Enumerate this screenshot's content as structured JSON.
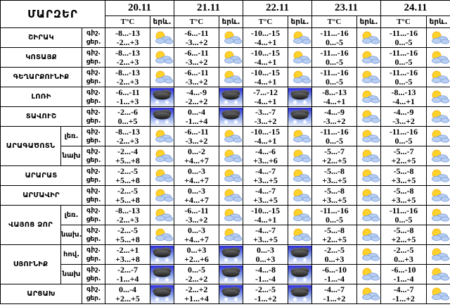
{
  "chart_data": {
    "type": "table",
    "title": "ՄԱՐԶԵՐ",
    "dates": [
      "20.11",
      "21.11",
      "22.11",
      "23.11",
      "24.11"
    ],
    "subcolumns": {
      "temp": "T°C",
      "weather": "երև."
    },
    "row_labels": {
      "night": "գիշ.",
      "day": "ցեր."
    },
    "icon_types": [
      "sun-cloud",
      "snow-cloud"
    ],
    "colors": {
      "border": "#000000",
      "sun": "#ffd229",
      "sun_edge": "#eda90a",
      "cloud_fill": "#b9cff2",
      "cloud_stroke": "#7a9cd8",
      "snow_sky_top": "#2b2bd8",
      "snow_sky_mid": "#8fa8ec",
      "snow_sky_bottom": "#f0f4ff",
      "snow_cloud_top": "#6a6a6a",
      "snow_cloud_bottom": "#141414",
      "flake": "#ffffff"
    },
    "regions": [
      {
        "name": "ՇԻՐԱԿ",
        "rows": [
          {
            "sub": null,
            "days": [
              {
                "night": "-8...-13",
                "day": "-2...+3",
                "icon": "sun-cloud"
              },
              {
                "night": "-6...-11",
                "day": "-3...+2",
                "icon": "sun-cloud"
              },
              {
                "night": "-10...-15",
                "day": "-4...+1",
                "icon": "sun-cloud"
              },
              {
                "night": "-11...-16",
                "day": "0...-5",
                "icon": "sun-cloud"
              },
              {
                "night": "-11...-16",
                "day": "0...-5",
                "icon": "sun-cloud"
              }
            ]
          }
        ]
      },
      {
        "name": "ԿՈՏԱՅՔ",
        "rows": [
          {
            "sub": null,
            "days": [
              {
                "night": "-8...-13",
                "day": "-2...+3",
                "icon": "sun-cloud"
              },
              {
                "night": "-6...-11",
                "day": "-3...+2",
                "icon": "sun-cloud"
              },
              {
                "night": "-10...-15",
                "day": "-4...+1",
                "icon": "sun-cloud"
              },
              {
                "night": "-11...-16",
                "day": "0...-5",
                "icon": "sun-cloud"
              },
              {
                "night": "-11...-16",
                "day": "0...-5",
                "icon": "sun-cloud"
              }
            ]
          }
        ]
      },
      {
        "name": "ԳԵՂԱՐՔՈՒՆԻՔ",
        "rows": [
          {
            "sub": null,
            "days": [
              {
                "night": "-8...-13",
                "day": "-2...+3",
                "icon": "sun-cloud"
              },
              {
                "night": "-6...-11",
                "day": "-3...+2",
                "icon": "sun-cloud"
              },
              {
                "night": "-10...-15",
                "day": "-4...+1",
                "icon": "sun-cloud"
              },
              {
                "night": "-11...-16",
                "day": "0...-5",
                "icon": "sun-cloud"
              },
              {
                "night": "-11...-16",
                "day": "0...-5",
                "icon": "sun-cloud"
              }
            ]
          }
        ]
      },
      {
        "name": "ԼՈՌԻ",
        "rows": [
          {
            "sub": null,
            "days": [
              {
                "night": "-6...-11",
                "day": "-1...+3",
                "icon": "snow-cloud"
              },
              {
                "night": "-4...-9",
                "day": "-2...+2",
                "icon": "snow-cloud"
              },
              {
                "night": "-7...-12",
                "day": "-4...+1",
                "icon": "snow-cloud"
              },
              {
                "night": "-8...-13",
                "day": "-4...+1",
                "icon": "sun-cloud"
              },
              {
                "night": "-8...-13",
                "day": "-4...+1",
                "icon": "sun-cloud"
              }
            ]
          }
        ]
      },
      {
        "name": "ՏԱՎՈՒՇ",
        "rows": [
          {
            "sub": null,
            "days": [
              {
                "night": "-2...-6",
                "day": "0...+5",
                "icon": "snow-cloud"
              },
              {
                "night": "0...-4",
                "day": "-1...+4",
                "icon": "snow-cloud"
              },
              {
                "night": "-3...-7",
                "day": "-3...+2",
                "icon": "snow-cloud"
              },
              {
                "night": "-4...-9",
                "day": "-3...+2",
                "icon": "sun-cloud"
              },
              {
                "night": "-4...-9",
                "day": "-3...+2",
                "icon": "sun-cloud"
              }
            ]
          }
        ]
      },
      {
        "name": "ԱՐԱԳԱԾՈՏՆ",
        "rows": [
          {
            "sub": "լեռ.",
            "days": [
              {
                "night": "-8...-13",
                "day": "-2...+3",
                "icon": "sun-cloud"
              },
              {
                "night": "-6...-11",
                "day": "-3...+2",
                "icon": "sun-cloud"
              },
              {
                "night": "-10...-15",
                "day": "-4...+1",
                "icon": "sun-cloud"
              },
              {
                "night": "-11...-16",
                "day": "0...-5",
                "icon": "sun-cloud"
              },
              {
                "night": "-11...-16",
                "day": "0...-5",
                "icon": "sun-cloud"
              }
            ]
          },
          {
            "sub": "նախ",
            "days": [
              {
                "night": "-2...-4",
                "day": "+5...+8",
                "icon": "sun-cloud"
              },
              {
                "night": "0...-2",
                "day": "+4...+7",
                "icon": "sun-cloud"
              },
              {
                "night": "-4...-6",
                "day": "+3...+6",
                "icon": "sun-cloud"
              },
              {
                "night": "-5...-7",
                "day": "+2...+5",
                "icon": "sun-cloud"
              },
              {
                "night": "-5...-7",
                "day": "+2...+5",
                "icon": "sun-cloud"
              }
            ]
          }
        ]
      },
      {
        "name": "ԱՐԱՐԱՏ",
        "rows": [
          {
            "sub": null,
            "days": [
              {
                "night": "-2...-5",
                "day": "+5...+8",
                "icon": "sun-cloud"
              },
              {
                "night": "0...-3",
                "day": "+4...+7",
                "icon": "sun-cloud"
              },
              {
                "night": "-4...-7",
                "day": "+3...+5",
                "icon": "sun-cloud"
              },
              {
                "night": "-5...-8",
                "day": "+3...+5",
                "icon": "sun-cloud"
              },
              {
                "night": "-5...-8",
                "day": "+3...+5",
                "icon": "sun-cloud"
              }
            ]
          }
        ]
      },
      {
        "name": "ԱՐՄԱՎԻՐ",
        "rows": [
          {
            "sub": null,
            "days": [
              {
                "night": "-2...-5",
                "day": "+5...+8",
                "icon": "sun-cloud"
              },
              {
                "night": "0...-3",
                "day": "+4...+7",
                "icon": "sun-cloud"
              },
              {
                "night": "-4...-7",
                "day": "+3...+5",
                "icon": "sun-cloud"
              },
              {
                "night": "-5...-8",
                "day": "+3...+5",
                "icon": "sun-cloud"
              },
              {
                "night": "-5...-8",
                "day": "+3...+5",
                "icon": "sun-cloud"
              }
            ]
          }
        ]
      },
      {
        "name": "ՎԱՅՈՑ ՁՈՐ",
        "rows": [
          {
            "sub": "լեռ.",
            "days": [
              {
                "night": "-8...-13",
                "day": "-2...+3",
                "icon": "sun-cloud"
              },
              {
                "night": "-6...-11",
                "day": "-3...+2",
                "icon": "sun-cloud"
              },
              {
                "night": "-10...-15",
                "day": "-4...+1",
                "icon": "sun-cloud"
              },
              {
                "night": "-11...-16",
                "day": "0...-5",
                "icon": "sun-cloud"
              },
              {
                "night": "-11...-16",
                "day": "0...-5",
                "icon": "sun-cloud"
              }
            ]
          },
          {
            "sub": "նախ.",
            "days": [
              {
                "night": "-2...-5",
                "day": "+5...+8",
                "icon": "sun-cloud"
              },
              {
                "night": "0...-3",
                "day": "+4...+7",
                "icon": "sun-cloud"
              },
              {
                "night": "-4...-7",
                "day": "+3...+5",
                "icon": "sun-cloud"
              },
              {
                "night": "-5...-8",
                "day": "+2...+5",
                "icon": "sun-cloud"
              },
              {
                "night": "-5...-8",
                "day": "+2...+5",
                "icon": "sun-cloud"
              }
            ]
          }
        ]
      },
      {
        "name": "ՍՅՈՒՆԻՔ",
        "rows": [
          {
            "sub": "հով.",
            "days": [
              {
                "night": "-2...+1",
                "day": "+3...+8",
                "icon": "snow-cloud"
              },
              {
                "night": "0...+3",
                "day": "+2...+6",
                "icon": "snow-cloud"
              },
              {
                "night": "0...-3",
                "day": "0...+3",
                "icon": "snow-cloud"
              },
              {
                "night": "-2...-5",
                "day": "0...+3",
                "icon": "sun-cloud"
              },
              {
                "night": "-2...-5",
                "day": "0...+3",
                "icon": "sun-cloud"
              }
            ]
          },
          {
            "sub": "նախ",
            "days": [
              {
                "night": "-2...-7",
                "day": "-1...+4",
                "icon": "snow-cloud"
              },
              {
                "night": "0...-5",
                "day": "-2...+2",
                "icon": "snow-cloud"
              },
              {
                "night": "-4...-8",
                "day": "-1...-4",
                "icon": "snow-cloud"
              },
              {
                "night": "-6...-10",
                "day": "-1...-4",
                "icon": "sun-cloud"
              },
              {
                "night": "-6...-10",
                "day": "-1...-4",
                "icon": "sun-cloud"
              }
            ]
          }
        ]
      },
      {
        "name": "ԱՐՑԱԽ",
        "rows": [
          {
            "sub": null,
            "days": [
              {
                "night": "0...-4",
                "day": "+2...+5",
                "icon": "snow-cloud"
              },
              {
                "night": "-2...+2",
                "day": "+1...+4",
                "icon": "snow-cloud"
              },
              {
                "night": "-2...-5",
                "day": "-1...+2",
                "icon": "snow-cloud"
              },
              {
                "night": "-4...-7",
                "day": "-1...+2",
                "icon": "sun-cloud"
              },
              {
                "night": "-4...-7",
                "day": "-1...+2",
                "icon": "sun-cloud"
              }
            ]
          }
        ]
      }
    ]
  }
}
